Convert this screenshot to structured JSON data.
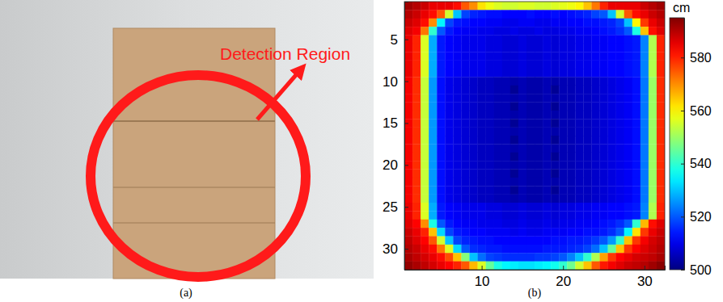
{
  "panel_a": {
    "annotation": "Detection Region",
    "caption": "(a)"
  },
  "chart_data": {
    "type": "heatmap",
    "caption": "(b)",
    "x": [
      1,
      2,
      3,
      4,
      5,
      6,
      7,
      8,
      9,
      10,
      11,
      12,
      13,
      14,
      15,
      16,
      17,
      18,
      19,
      20,
      21,
      22,
      23,
      24,
      25,
      26,
      27,
      28,
      29,
      30,
      31,
      32
    ],
    "y": [
      1,
      2,
      3,
      4,
      5,
      6,
      7,
      8,
      9,
      10,
      11,
      12,
      13,
      14,
      15,
      16,
      17,
      18,
      19,
      20,
      21,
      22,
      23,
      24,
      25,
      26,
      27,
      28,
      29,
      30,
      31,
      32
    ],
    "xlim": [
      0.5,
      32.5
    ],
    "ylim": [
      32.5,
      0.5
    ],
    "xticks": [
      10,
      20,
      30
    ],
    "yticks": [
      5,
      10,
      15,
      20,
      25,
      30
    ],
    "colorbar": {
      "label": "cm",
      "range": [
        500,
        595
      ],
      "ticks": [
        500,
        520,
        540,
        560,
        580
      ]
    },
    "cells": [
      [
        592,
        590,
        588,
        585,
        585,
        585,
        582,
        575,
        570,
        562,
        558,
        556,
        555,
        555,
        556,
        556,
        555,
        555,
        556,
        557,
        558,
        560,
        565,
        572,
        580,
        585,
        585,
        585,
        585,
        588,
        590,
        592
      ],
      [
        590,
        588,
        585,
        582,
        575,
        555,
        530,
        518,
        515,
        514,
        513,
        513,
        512,
        512,
        512,
        513,
        512,
        512,
        513,
        512,
        513,
        514,
        515,
        518,
        520,
        530,
        555,
        575,
        582,
        585,
        588,
        590
      ],
      [
        588,
        586,
        582,
        570,
        535,
        518,
        514,
        513,
        512,
        512,
        511,
        511,
        510,
        510,
        511,
        511,
        510,
        510,
        511,
        511,
        512,
        512,
        513,
        513,
        514,
        515,
        518,
        530,
        560,
        578,
        585,
        588
      ],
      [
        586,
        584,
        572,
        540,
        520,
        514,
        512,
        511,
        511,
        510,
        510,
        509,
        509,
        510,
        509,
        509,
        510,
        509,
        509,
        510,
        510,
        511,
        511,
        512,
        513,
        514,
        516,
        520,
        538,
        565,
        582,
        586
      ],
      [
        585,
        580,
        556,
        528,
        514,
        512,
        511,
        510,
        510,
        510,
        509,
        509,
        508,
        508,
        509,
        508,
        508,
        509,
        508,
        509,
        509,
        510,
        510,
        511,
        511,
        512,
        512,
        513,
        514,
        524,
        552,
        580
      ],
      [
        585,
        580,
        556,
        528,
        514,
        512,
        511,
        510,
        510,
        510,
        509,
        509,
        508,
        508,
        509,
        508,
        508,
        509,
        508,
        509,
        509,
        510,
        510,
        511,
        511,
        512,
        512,
        513,
        514,
        524,
        552,
        580
      ],
      [
        585,
        580,
        556,
        528,
        514,
        512,
        511,
        510,
        510,
        510,
        509,
        509,
        508,
        508,
        509,
        508,
        508,
        509,
        508,
        509,
        509,
        510,
        510,
        511,
        511,
        512,
        512,
        513,
        514,
        524,
        552,
        580
      ],
      [
        585,
        580,
        556,
        528,
        514,
        512,
        511,
        510,
        510,
        510,
        509,
        509,
        508,
        508,
        509,
        508,
        508,
        509,
        508,
        509,
        509,
        510,
        510,
        511,
        511,
        512,
        512,
        513,
        514,
        524,
        552,
        580
      ],
      [
        585,
        580,
        556,
        528,
        514,
        512,
        511,
        510,
        510,
        510,
        509,
        509,
        508,
        508,
        509,
        508,
        508,
        509,
        508,
        509,
        509,
        510,
        510,
        511,
        511,
        512,
        512,
        513,
        514,
        524,
        552,
        580
      ],
      [
        584,
        579,
        554,
        526,
        513,
        510,
        509,
        508,
        507,
        506,
        506,
        505,
        505,
        504,
        505,
        504,
        504,
        505,
        504,
        505,
        505,
        506,
        506,
        507,
        508,
        509,
        510,
        511,
        513,
        523,
        550,
        579
      ],
      [
        584,
        579,
        554,
        526,
        513,
        510,
        509,
        508,
        507,
        506,
        506,
        505,
        505,
        502,
        505,
        504,
        504,
        505,
        502,
        505,
        505,
        506,
        506,
        507,
        508,
        509,
        510,
        511,
        513,
        523,
        550,
        579
      ],
      [
        584,
        579,
        554,
        526,
        513,
        510,
        509,
        508,
        507,
        506,
        506,
        505,
        505,
        504,
        505,
        504,
        504,
        505,
        504,
        505,
        505,
        506,
        506,
        507,
        508,
        509,
        510,
        511,
        513,
        523,
        550,
        579
      ],
      [
        584,
        579,
        554,
        526,
        513,
        510,
        509,
        508,
        507,
        506,
        506,
        505,
        505,
        502,
        505,
        504,
        504,
        505,
        502,
        505,
        505,
        506,
        506,
        507,
        508,
        509,
        510,
        511,
        513,
        523,
        550,
        579
      ],
      [
        584,
        579,
        554,
        526,
        513,
        510,
        509,
        508,
        507,
        506,
        506,
        505,
        505,
        504,
        505,
        504,
        504,
        505,
        504,
        505,
        505,
        506,
        506,
        507,
        508,
        509,
        510,
        511,
        513,
        523,
        550,
        579
      ],
      [
        584,
        579,
        554,
        526,
        513,
        510,
        509,
        508,
        507,
        506,
        506,
        505,
        505,
        502,
        505,
        504,
        504,
        505,
        502,
        505,
        505,
        506,
        506,
        507,
        508,
        509,
        510,
        511,
        513,
        523,
        550,
        579
      ],
      [
        584,
        579,
        554,
        526,
        513,
        510,
        509,
        508,
        507,
        506,
        506,
        505,
        505,
        504,
        505,
        504,
        504,
        505,
        504,
        505,
        505,
        506,
        506,
        507,
        508,
        509,
        510,
        511,
        513,
        523,
        550,
        579
      ],
      [
        584,
        579,
        554,
        526,
        513,
        510,
        509,
        508,
        507,
        506,
        506,
        505,
        505,
        502,
        505,
        504,
        504,
        505,
        502,
        505,
        505,
        506,
        506,
        507,
        508,
        509,
        510,
        511,
        513,
        523,
        550,
        579
      ],
      [
        584,
        579,
        554,
        526,
        513,
        510,
        509,
        508,
        507,
        506,
        506,
        505,
        505,
        504,
        505,
        504,
        504,
        505,
        504,
        505,
        505,
        506,
        506,
        507,
        508,
        509,
        510,
        511,
        513,
        523,
        550,
        579
      ],
      [
        584,
        579,
        554,
        526,
        513,
        510,
        509,
        508,
        507,
        506,
        506,
        505,
        505,
        502,
        505,
        504,
        504,
        505,
        502,
        505,
        505,
        506,
        506,
        507,
        508,
        509,
        510,
        511,
        513,
        523,
        550,
        579
      ],
      [
        584,
        579,
        554,
        526,
        513,
        510,
        509,
        508,
        507,
        506,
        506,
        505,
        505,
        504,
        505,
        504,
        504,
        505,
        504,
        505,
        505,
        506,
        506,
        507,
        508,
        509,
        510,
        511,
        513,
        523,
        550,
        579
      ],
      [
        584,
        579,
        554,
        526,
        513,
        510,
        509,
        508,
        507,
        506,
        506,
        505,
        505,
        502,
        505,
        504,
        504,
        505,
        502,
        505,
        505,
        506,
        506,
        507,
        508,
        509,
        510,
        511,
        513,
        523,
        550,
        579
      ],
      [
        584,
        579,
        554,
        526,
        513,
        510,
        509,
        508,
        507,
        506,
        506,
        505,
        505,
        504,
        505,
        504,
        504,
        505,
        504,
        505,
        505,
        506,
        506,
        507,
        508,
        509,
        510,
        511,
        513,
        523,
        550,
        579
      ],
      [
        584,
        579,
        554,
        526,
        513,
        510,
        509,
        508,
        507,
        506,
        506,
        505,
        505,
        502,
        505,
        504,
        504,
        505,
        502,
        505,
        505,
        506,
        506,
        507,
        508,
        509,
        510,
        511,
        513,
        523,
        550,
        579
      ],
      [
        584,
        579,
        554,
        526,
        513,
        510,
        509,
        508,
        507,
        506,
        506,
        505,
        505,
        504,
        505,
        504,
        504,
        505,
        504,
        505,
        505,
        506,
        506,
        507,
        508,
        509,
        510,
        511,
        513,
        523,
        550,
        579
      ],
      [
        585,
        580,
        556,
        528,
        514,
        512,
        511,
        510,
        510,
        510,
        509,
        509,
        508,
        508,
        509,
        508,
        508,
        509,
        508,
        509,
        509,
        510,
        510,
        511,
        511,
        512,
        512,
        513,
        514,
        524,
        552,
        580
      ],
      [
        585,
        580,
        556,
        528,
        514,
        512,
        511,
        510,
        510,
        510,
        509,
        509,
        508,
        508,
        509,
        508,
        508,
        509,
        508,
        509,
        509,
        510,
        510,
        511,
        511,
        512,
        512,
        513,
        514,
        524,
        552,
        580
      ],
      [
        586,
        583,
        570,
        538,
        520,
        514,
        512,
        511,
        511,
        510,
        510,
        510,
        509,
        509,
        510,
        509,
        509,
        510,
        509,
        510,
        510,
        511,
        511,
        512,
        513,
        514,
        516,
        520,
        540,
        566,
        582,
        586
      ],
      [
        588,
        585,
        580,
        565,
        532,
        518,
        514,
        513,
        512,
        512,
        511,
        511,
        511,
        510,
        511,
        510,
        510,
        511,
        511,
        511,
        512,
        512,
        513,
        513,
        514,
        516,
        520,
        535,
        562,
        578,
        585,
        588
      ],
      [
        589,
        586,
        583,
        575,
        555,
        530,
        518,
        515,
        514,
        513,
        513,
        512,
        512,
        512,
        512,
        512,
        512,
        512,
        513,
        513,
        514,
        514,
        515,
        517,
        520,
        526,
        540,
        565,
        578,
        584,
        587,
        589
      ],
      [
        590,
        588,
        585,
        582,
        572,
        556,
        532,
        520,
        516,
        515,
        514,
        514,
        513,
        513,
        513,
        513,
        513,
        514,
        514,
        514,
        515,
        516,
        518,
        522,
        530,
        545,
        565,
        578,
        583,
        586,
        588,
        590
      ],
      [
        591,
        589,
        587,
        585,
        582,
        576,
        565,
        548,
        530,
        522,
        518,
        517,
        516,
        516,
        516,
        516,
        517,
        517,
        518,
        520,
        524,
        530,
        540,
        552,
        568,
        578,
        583,
        585,
        587,
        588,
        589,
        591
      ],
      [
        593,
        591,
        589,
        587,
        585,
        583,
        580,
        575,
        566,
        556,
        545,
        538,
        535,
        534,
        533,
        533,
        534,
        535,
        537,
        540,
        546,
        555,
        565,
        575,
        581,
        584,
        586,
        588,
        589,
        590,
        592,
        594
      ]
    ]
  }
}
